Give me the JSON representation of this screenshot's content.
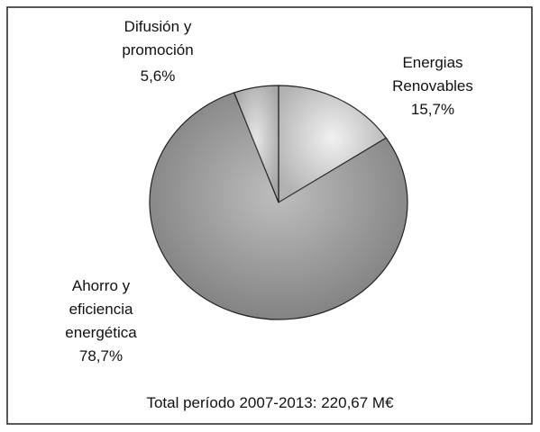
{
  "chart_data": {
    "type": "pie",
    "categories": [
      "Energias Renovables",
      "Ahorro y eficiencia energética",
      "Difusión y promoción"
    ],
    "values": [
      15.7,
      78.7,
      5.6
    ],
    "value_labels": [
      "15,7%",
      "78,7%",
      "5,6%"
    ],
    "colors": [
      "#ececec",
      "#a8a8a8",
      "#dcdcdc"
    ],
    "subtitle": "Total período 2007-2013: 220,67 M€"
  }
}
